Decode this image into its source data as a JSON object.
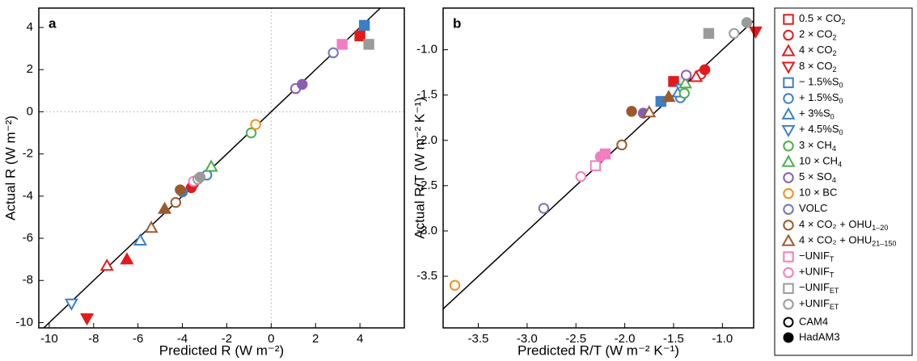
{
  "chart_data": [
    {
      "type": "scatter",
      "label": "a",
      "xlabel": "Predicted R (W m⁻²)",
      "ylabel": "Actual R (W m⁻²)",
      "xlim": [
        -10.47,
        6
      ],
      "ylim": [
        -10.25,
        4.92
      ],
      "xticks": [
        -10,
        -8,
        -6,
        -4,
        -2,
        0,
        2,
        4
      ],
      "yticks": [
        -10,
        -8,
        -6,
        -4,
        -2,
        0,
        2,
        4
      ],
      "zero_lines": true,
      "identity_line": true,
      "series": [
        {
          "x": [
            null,
            4.0
          ],
          "y": [
            null,
            3.6
          ]
        },
        {
          "x": [
            -3.5,
            -3.6
          ],
          "y": [
            -3.4,
            -3.6
          ]
        },
        {
          "x": [
            -7.4,
            -6.5
          ],
          "y": [
            -7.3,
            -7.0
          ]
        },
        {
          "x": [
            null,
            -8.3
          ],
          "y": [
            null,
            -9.8
          ]
        },
        {
          "x": [
            null,
            4.2
          ],
          "y": [
            null,
            4.1
          ]
        },
        {
          "x": [
            -2.9,
            -4.0
          ],
          "y": [
            -3.0,
            -3.8
          ]
        },
        {
          "x": [
            -5.9,
            null
          ],
          "y": [
            -6.1,
            null
          ]
        },
        {
          "x": [
            -9.0,
            null
          ],
          "y": [
            -9.1,
            null
          ]
        },
        {
          "x": [
            -0.9,
            null
          ],
          "y": [
            -1.0,
            null
          ]
        },
        {
          "x": [
            -2.7,
            null
          ],
          "y": [
            -2.6,
            null
          ]
        },
        {
          "x": [
            1.1,
            1.4
          ],
          "y": [
            1.1,
            1.3
          ]
        },
        {
          "x": [
            -0.7,
            null
          ],
          "y": [
            -0.6,
            null
          ]
        },
        {
          "x": [
            2.8,
            null
          ],
          "y": [
            2.8,
            null
          ]
        },
        {
          "x": [
            -4.3,
            -4.1
          ],
          "y": [
            -4.3,
            -3.7
          ]
        },
        {
          "x": [
            -5.4,
            -4.8
          ],
          "y": [
            -5.5,
            -4.6
          ]
        },
        {
          "x": [
            null,
            3.2
          ],
          "y": [
            null,
            3.2
          ]
        },
        {
          "x": [
            -3.5,
            null
          ],
          "y": [
            -3.3,
            null
          ]
        },
        {
          "x": [
            null,
            4.4
          ],
          "y": [
            null,
            3.2
          ]
        },
        {
          "x": [
            -3.3,
            -3.2
          ],
          "y": [
            -3.2,
            -3.1
          ]
        }
      ]
    },
    {
      "type": "scatter",
      "label": "b",
      "xlabel": "Predicted R/T (W m⁻² K⁻¹)",
      "ylabel": "Actual R/T (W m⁻² K⁻¹)",
      "xlim": [
        -3.86,
        -0.68
      ],
      "ylim": [
        -4.07,
        -0.54
      ],
      "xticks": [
        -3.5,
        {
          "value": -3,
          "label": "-3.0"
        },
        -2.5,
        {
          "value": -2,
          "label": "-2.0"
        },
        -1.5,
        {
          "value": -1,
          "label": "-1.0"
        }
      ],
      "yticks": [
        -3.5,
        {
          "value": -3,
          "label": "-3.0"
        },
        -2.5,
        {
          "value": -2,
          "label": "-2.0"
        },
        -1.5,
        {
          "value": -1,
          "label": "-1.0"
        }
      ],
      "zero_lines": false,
      "identity_line": true,
      "series": [
        {
          "x": [
            null,
            -1.5
          ],
          "y": [
            null,
            -1.35
          ]
        },
        {
          "x": [
            -1.22,
            -1.18
          ],
          "y": [
            -1.27,
            -1.22
          ]
        },
        {
          "x": [
            -1.27,
            null
          ],
          "y": [
            -1.3,
            null
          ]
        },
        {
          "x": [
            null,
            -0.66
          ],
          "y": [
            null,
            -0.8
          ]
        },
        {
          "x": [
            null,
            -1.63
          ],
          "y": [
            null,
            -1.57
          ]
        },
        {
          "x": [
            -1.43,
            null
          ],
          "y": [
            -1.53,
            null
          ]
        },
        {
          "x": [
            -1.45,
            null
          ],
          "y": [
            -1.47,
            null
          ]
        },
        {
          "x": [
            -1.42,
            null
          ],
          "y": [
            -1.43,
            null
          ]
        },
        {
          "x": [
            -1.39,
            null
          ],
          "y": [
            -1.48,
            null
          ]
        },
        {
          "x": [
            -1.38,
            null
          ],
          "y": [
            -1.37,
            null
          ]
        },
        {
          "x": [
            -1.37,
            -1.81
          ],
          "y": [
            -1.28,
            -1.7
          ]
        },
        {
          "x": [
            -3.74,
            null
          ],
          "y": [
            -3.6,
            null
          ]
        },
        {
          "x": [
            -2.83,
            null
          ],
          "y": [
            -2.75,
            null
          ]
        },
        {
          "x": [
            -2.03,
            -1.93
          ],
          "y": [
            -2.05,
            -1.68
          ]
        },
        {
          "x": [
            -1.75,
            -1.55
          ],
          "y": [
            -1.69,
            -1.52
          ]
        },
        {
          "x": [
            -2.3,
            -2.2
          ],
          "y": [
            -2.28,
            -2.15
          ]
        },
        {
          "x": [
            -2.45,
            -2.25
          ],
          "y": [
            -2.4,
            -2.18
          ]
        },
        {
          "x": [
            null,
            -1.14
          ],
          "y": [
            null,
            -0.82
          ]
        },
        {
          "x": [
            -0.88,
            -0.75
          ],
          "y": [
            -0.82,
            -0.7
          ]
        }
      ]
    }
  ],
  "legend": {
    "entries": [
      {
        "label": "0.5 × CO",
        "sub": "2",
        "color": "#e31a1c",
        "marker": "square"
      },
      {
        "label": "2 × CO",
        "sub": "2",
        "color": "#e31a1c",
        "marker": "circle"
      },
      {
        "label": "4 × CO",
        "sub": "2",
        "color": "#e31a1c",
        "marker": "triangle-up"
      },
      {
        "label": "8 × CO",
        "sub": "2",
        "color": "#e31a1c",
        "marker": "triangle-down"
      },
      {
        "label": "− 1.5%S",
        "sub": "0",
        "color": "#3b7fc4",
        "marker": "square"
      },
      {
        "label": "+ 1.5%S",
        "sub": "0",
        "color": "#3b7fc4",
        "marker": "circle"
      },
      {
        "label": "+ 3%S",
        "sub": "0",
        "color": "#3b7fc4",
        "marker": "triangle-up"
      },
      {
        "label": "+ 4.5%S",
        "sub": "0",
        "color": "#3b7fc4",
        "marker": "triangle-down"
      },
      {
        "label": "3 × CH",
        "sub": "4",
        "color": "#4cae4a",
        "marker": "circle"
      },
      {
        "label": "10 × CH",
        "sub": "4",
        "color": "#4cae4a",
        "marker": "triangle-up"
      },
      {
        "label": "5 × SO",
        "sub": "4",
        "color": "#8a5db0",
        "marker": "circle"
      },
      {
        "label": "10 × BC",
        "color": "#f39020",
        "marker": "circle"
      },
      {
        "label": "VOLC",
        "color": "#7575b8",
        "marker": "circle"
      },
      {
        "label": "4 × CO₂ + OHU",
        "sub": "1–20",
        "color": "#9c5a2c",
        "marker": "circle"
      },
      {
        "label": "4 × CO₂ + OHU",
        "sub": "21–150",
        "color": "#9c5a2c",
        "marker": "triangle-up"
      },
      {
        "label": "−UNIF",
        "sub": "T",
        "color": "#f27ec2",
        "marker": "square"
      },
      {
        "label": "+UNIF",
        "sub": "T",
        "color": "#f27ec2",
        "marker": "circle"
      },
      {
        "label": "−UNIF",
        "sub": "ET",
        "color": "#9a9a9a",
        "marker": "square"
      },
      {
        "label": "+UNIF",
        "sub": "ET",
        "color": "#9a9a9a",
        "marker": "circle"
      }
    ],
    "models": [
      {
        "name": "CAM4",
        "filled": false
      },
      {
        "name": "HadAM3",
        "filled": true
      }
    ]
  }
}
